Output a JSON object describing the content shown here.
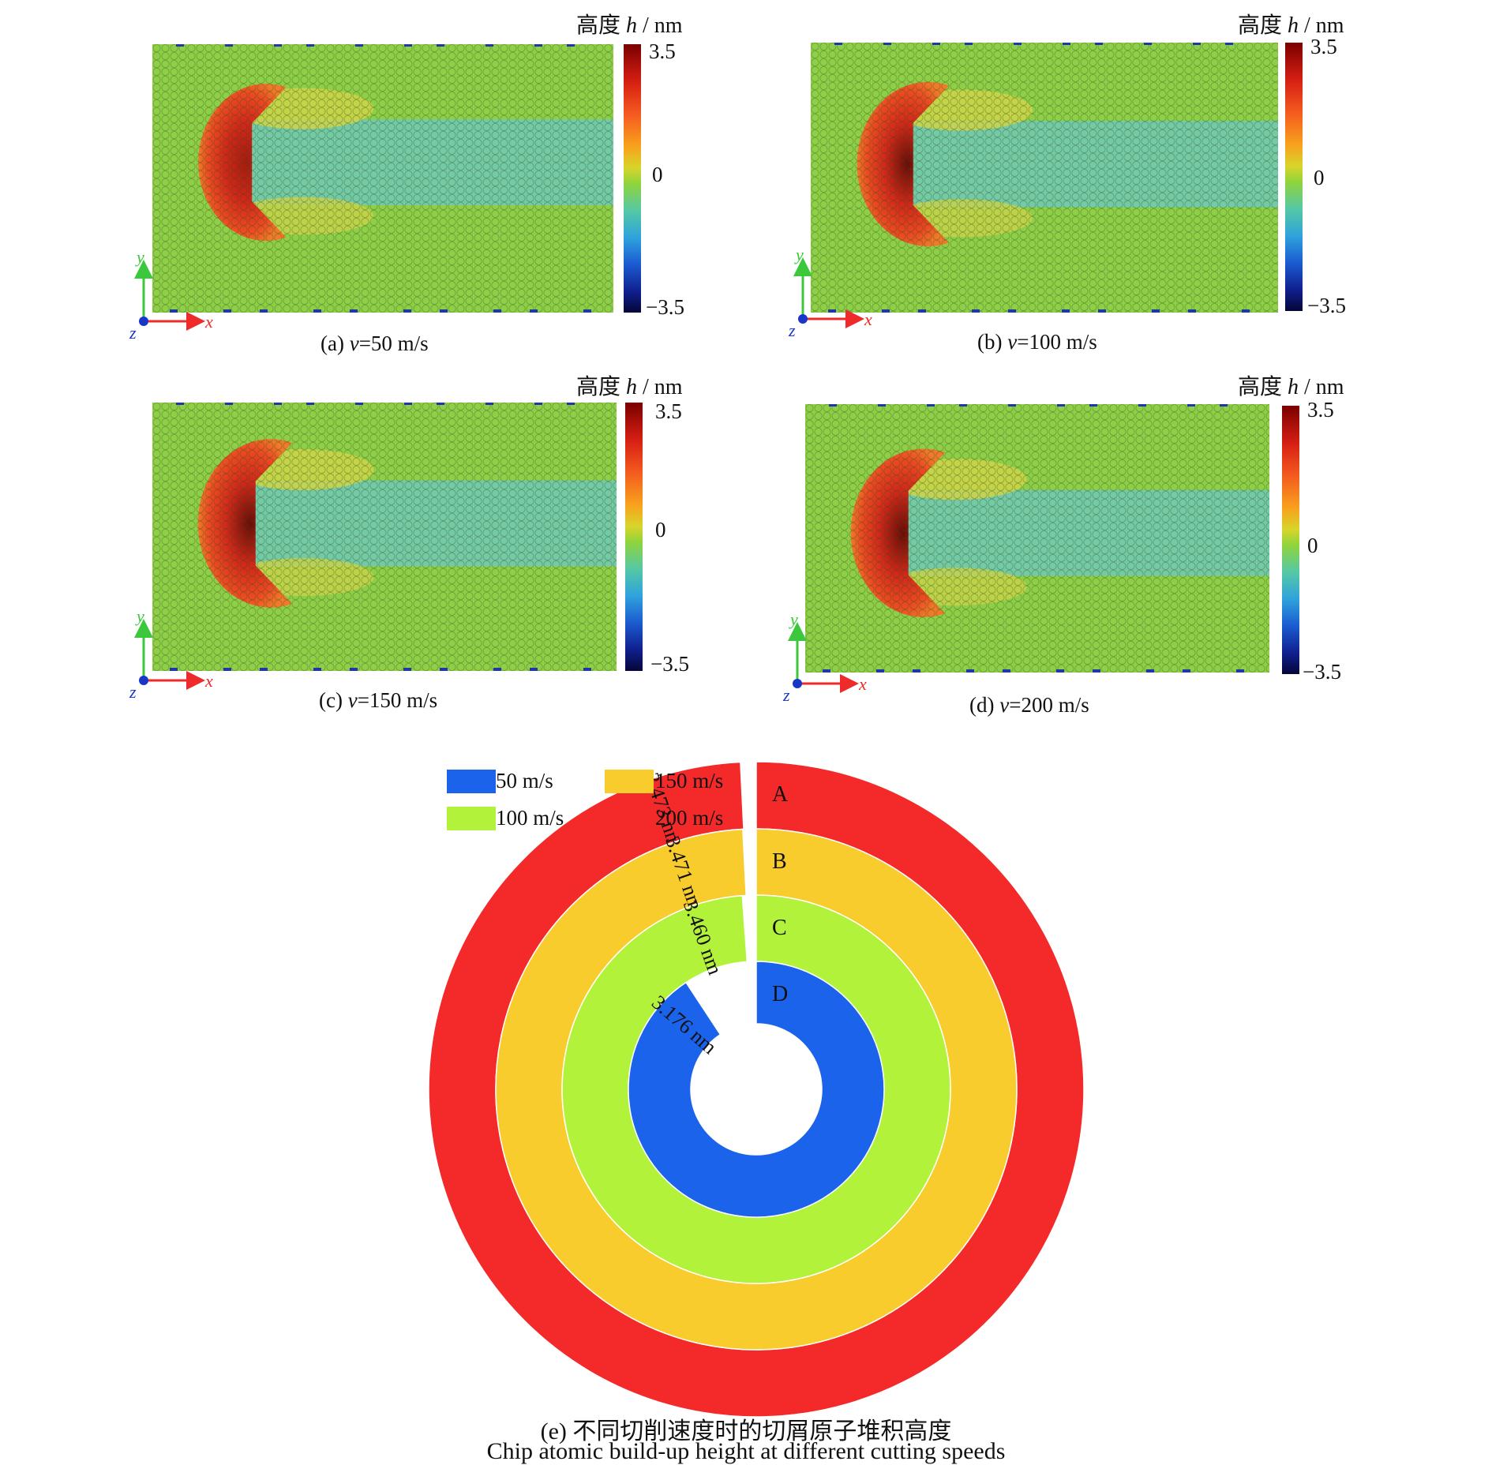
{
  "colorbar": {
    "title_prefix": "高度 ",
    "title_var": "h",
    "title_unit": " / nm",
    "max_label": "3.5",
    "mid_label": "0",
    "min_label": "−3.5"
  },
  "axes": {
    "x": "x",
    "y": "y",
    "z": "z"
  },
  "panels": [
    {
      "id": "a",
      "caption_prefix": "(a) ",
      "caption_var": "v",
      "caption_value": "=50 m/s"
    },
    {
      "id": "b",
      "caption_prefix": "(b) ",
      "caption_var": "v",
      "caption_value": "=100 m/s"
    },
    {
      "id": "c",
      "caption_prefix": "(c) ",
      "caption_var": "v",
      "caption_value": "=150 m/s"
    },
    {
      "id": "d",
      "caption_prefix": "(d) ",
      "caption_var": "v",
      "caption_value": "=200 m/s"
    }
  ],
  "chart_data": {
    "type": "radial bar",
    "legend": [
      "50 m/s",
      "150 m/s",
      "100 m/s",
      "200 m/s"
    ],
    "series": [
      {
        "name": "200 m/s",
        "ring": "A",
        "value": 3.473,
        "label": "3.473 nm",
        "color": "#f42929"
      },
      {
        "name": "150 m/s",
        "ring": "B",
        "value": 3.471,
        "label": "3.471 nm",
        "color": "#f8cc2c"
      },
      {
        "name": "100 m/s",
        "ring": "C",
        "value": 3.46,
        "label": "3.460 nm",
        "color": "#b3f23a"
      },
      {
        "name": "50 m/s",
        "ring": "D",
        "value": 3.176,
        "label": "3.176 nm",
        "color": "#1a63ea"
      }
    ],
    "caption_cn": "(e) 不同切削速度时的切屑原子堆积高度",
    "caption_en": "Chip atomic build-up height at different cutting speeds"
  }
}
